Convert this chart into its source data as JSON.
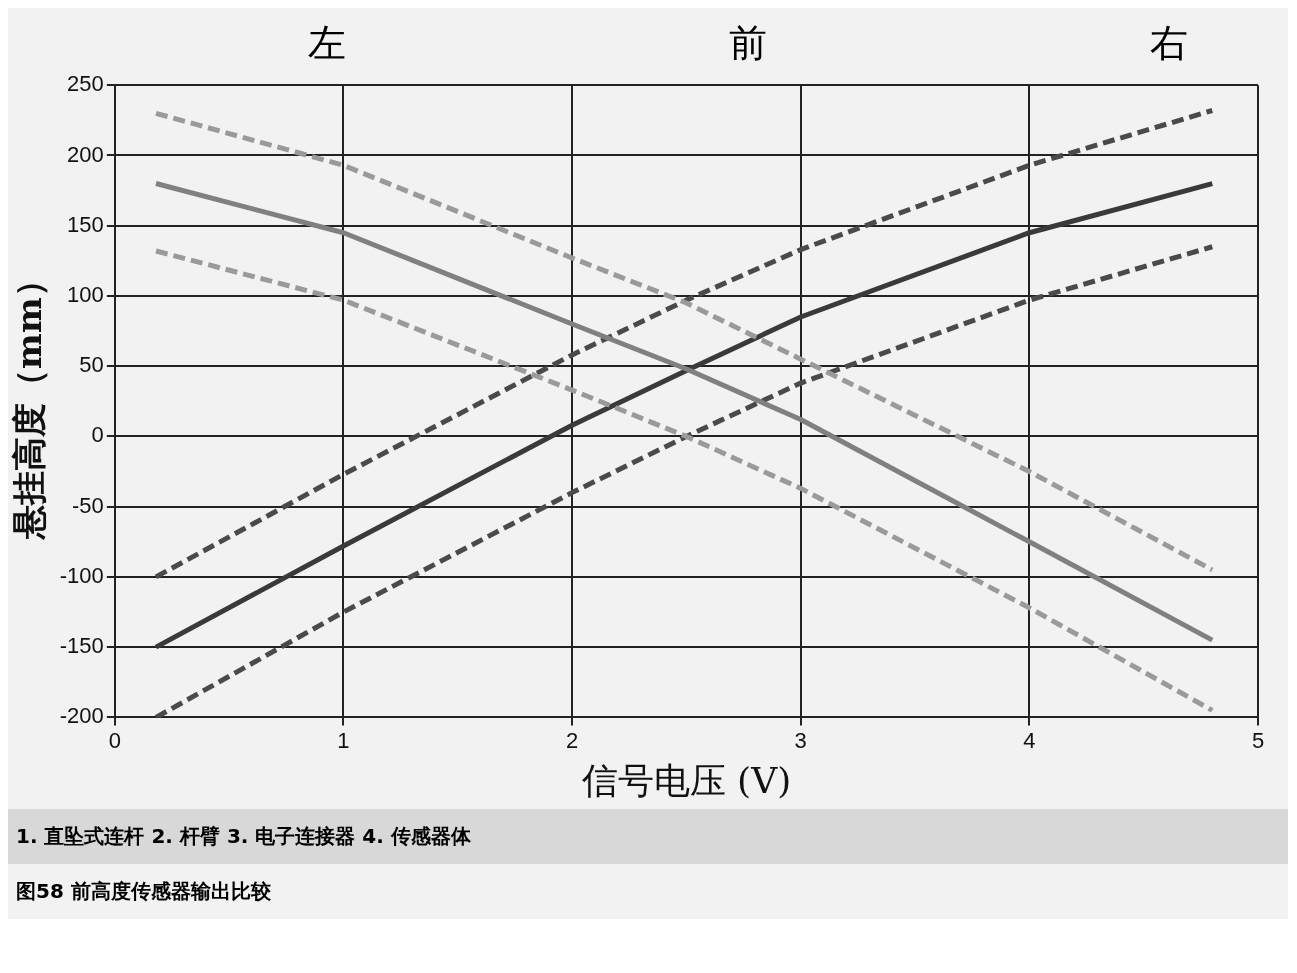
{
  "chart_data": {
    "type": "line",
    "xlabel": "信号电压 (V)",
    "ylabel": "悬挂高度（mm）",
    "annotations": [
      "左",
      "前",
      "右",
      "1. 直坠式连杆 2. 杆臂 3. 电子连接器 4. 传感器体",
      "图58 前高度传感器输出比较"
    ],
    "xlim": [
      0,
      5
    ],
    "xticks": [
      0,
      1,
      2,
      3,
      4,
      5
    ],
    "ylim": [
      -200,
      250
    ],
    "yticks": [
      -200,
      -150,
      -100,
      -50,
      0,
      50,
      100,
      150,
      200,
      250
    ],
    "grid": true,
    "legend": false,
    "marker": "none",
    "series": [
      {
        "color": "#9a9a9a",
        "line_style": "dashed",
        "x": [
          0.18,
          1,
          2,
          2.5,
          3,
          4,
          4.8
        ],
        "values": [
          230,
          193,
          127,
          95,
          55,
          -25,
          -95
        ]
      },
      {
        "color": "#808080",
        "line_style": "solid",
        "x": [
          0.18,
          1,
          2,
          2.5,
          3,
          4,
          4.8
        ],
        "values": [
          180,
          145,
          80,
          48,
          12,
          -75,
          -145
        ]
      },
      {
        "color": "#9a9a9a",
        "line_style": "dashed",
        "x": [
          0.18,
          1,
          2,
          2.5,
          3,
          4,
          4.8
        ],
        "values": [
          132,
          97,
          33,
          0,
          -37,
          -122,
          -195
        ]
      },
      {
        "color": "#4a4a4a",
        "line_style": "dashed",
        "x": [
          0.18,
          1,
          2,
          2.5,
          3,
          4,
          4.8
        ],
        "values": [
          -100,
          -27,
          58,
          97,
          133,
          193,
          232
        ]
      },
      {
        "color": "#3a3a3a",
        "line_style": "solid",
        "x": [
          0.18,
          1,
          2,
          2.5,
          3,
          4,
          4.8
        ],
        "values": [
          -150,
          -78,
          8,
          47,
          85,
          145,
          180
        ]
      },
      {
        "color": "#4a4a4a",
        "line_style": "dashed",
        "x": [
          0.18,
          1,
          2,
          2.5,
          3,
          4,
          4.8
        ],
        "values": [
          -200,
          -125,
          -40,
          0,
          38,
          97,
          135
        ]
      }
    ]
  }
}
